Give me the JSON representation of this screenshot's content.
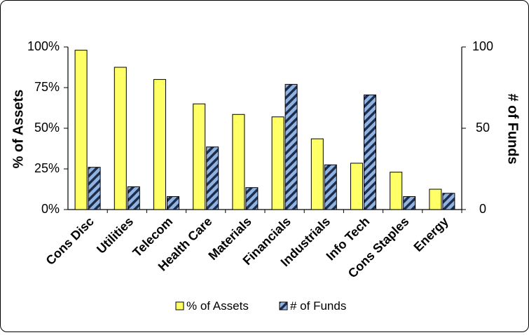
{
  "chart_data": {
    "type": "bar",
    "categories": [
      "Cons Disc",
      "Utilities",
      "Telecom",
      "Health Care",
      "Materials",
      "Financials",
      "Industrials",
      "Info Tech",
      "Cons Staples",
      "Energy"
    ],
    "series": [
      {
        "name": "% of Assets",
        "axis": "left",
        "values": [
          98,
          87.5,
          80,
          65,
          58.5,
          57,
          43.5,
          28.5,
          23,
          12.5
        ]
      },
      {
        "name": "# of Funds",
        "axis": "right",
        "values": [
          26,
          14,
          8,
          38.5,
          13.5,
          77,
          27.5,
          70.5,
          8,
          10
        ]
      }
    ],
    "y_left": {
      "label": "% of Assets",
      "ticks": [
        "0%",
        "25%",
        "50%",
        "75%",
        "100%"
      ],
      "ylim": [
        0,
        100
      ]
    },
    "y_right": {
      "label": "# of Funds",
      "ticks": [
        "0",
        "50",
        "100"
      ],
      "ylim": [
        0,
        100
      ]
    },
    "legend": {
      "position": "bottom",
      "entries": [
        "% of Assets",
        "# of Funds"
      ]
    },
    "grid": false,
    "colors": {
      "assets_fill": "#ffff66",
      "funds_fill": "#8fb4e3",
      "funds_hatch": "#1f2d4a",
      "outline": "#000000"
    }
  }
}
